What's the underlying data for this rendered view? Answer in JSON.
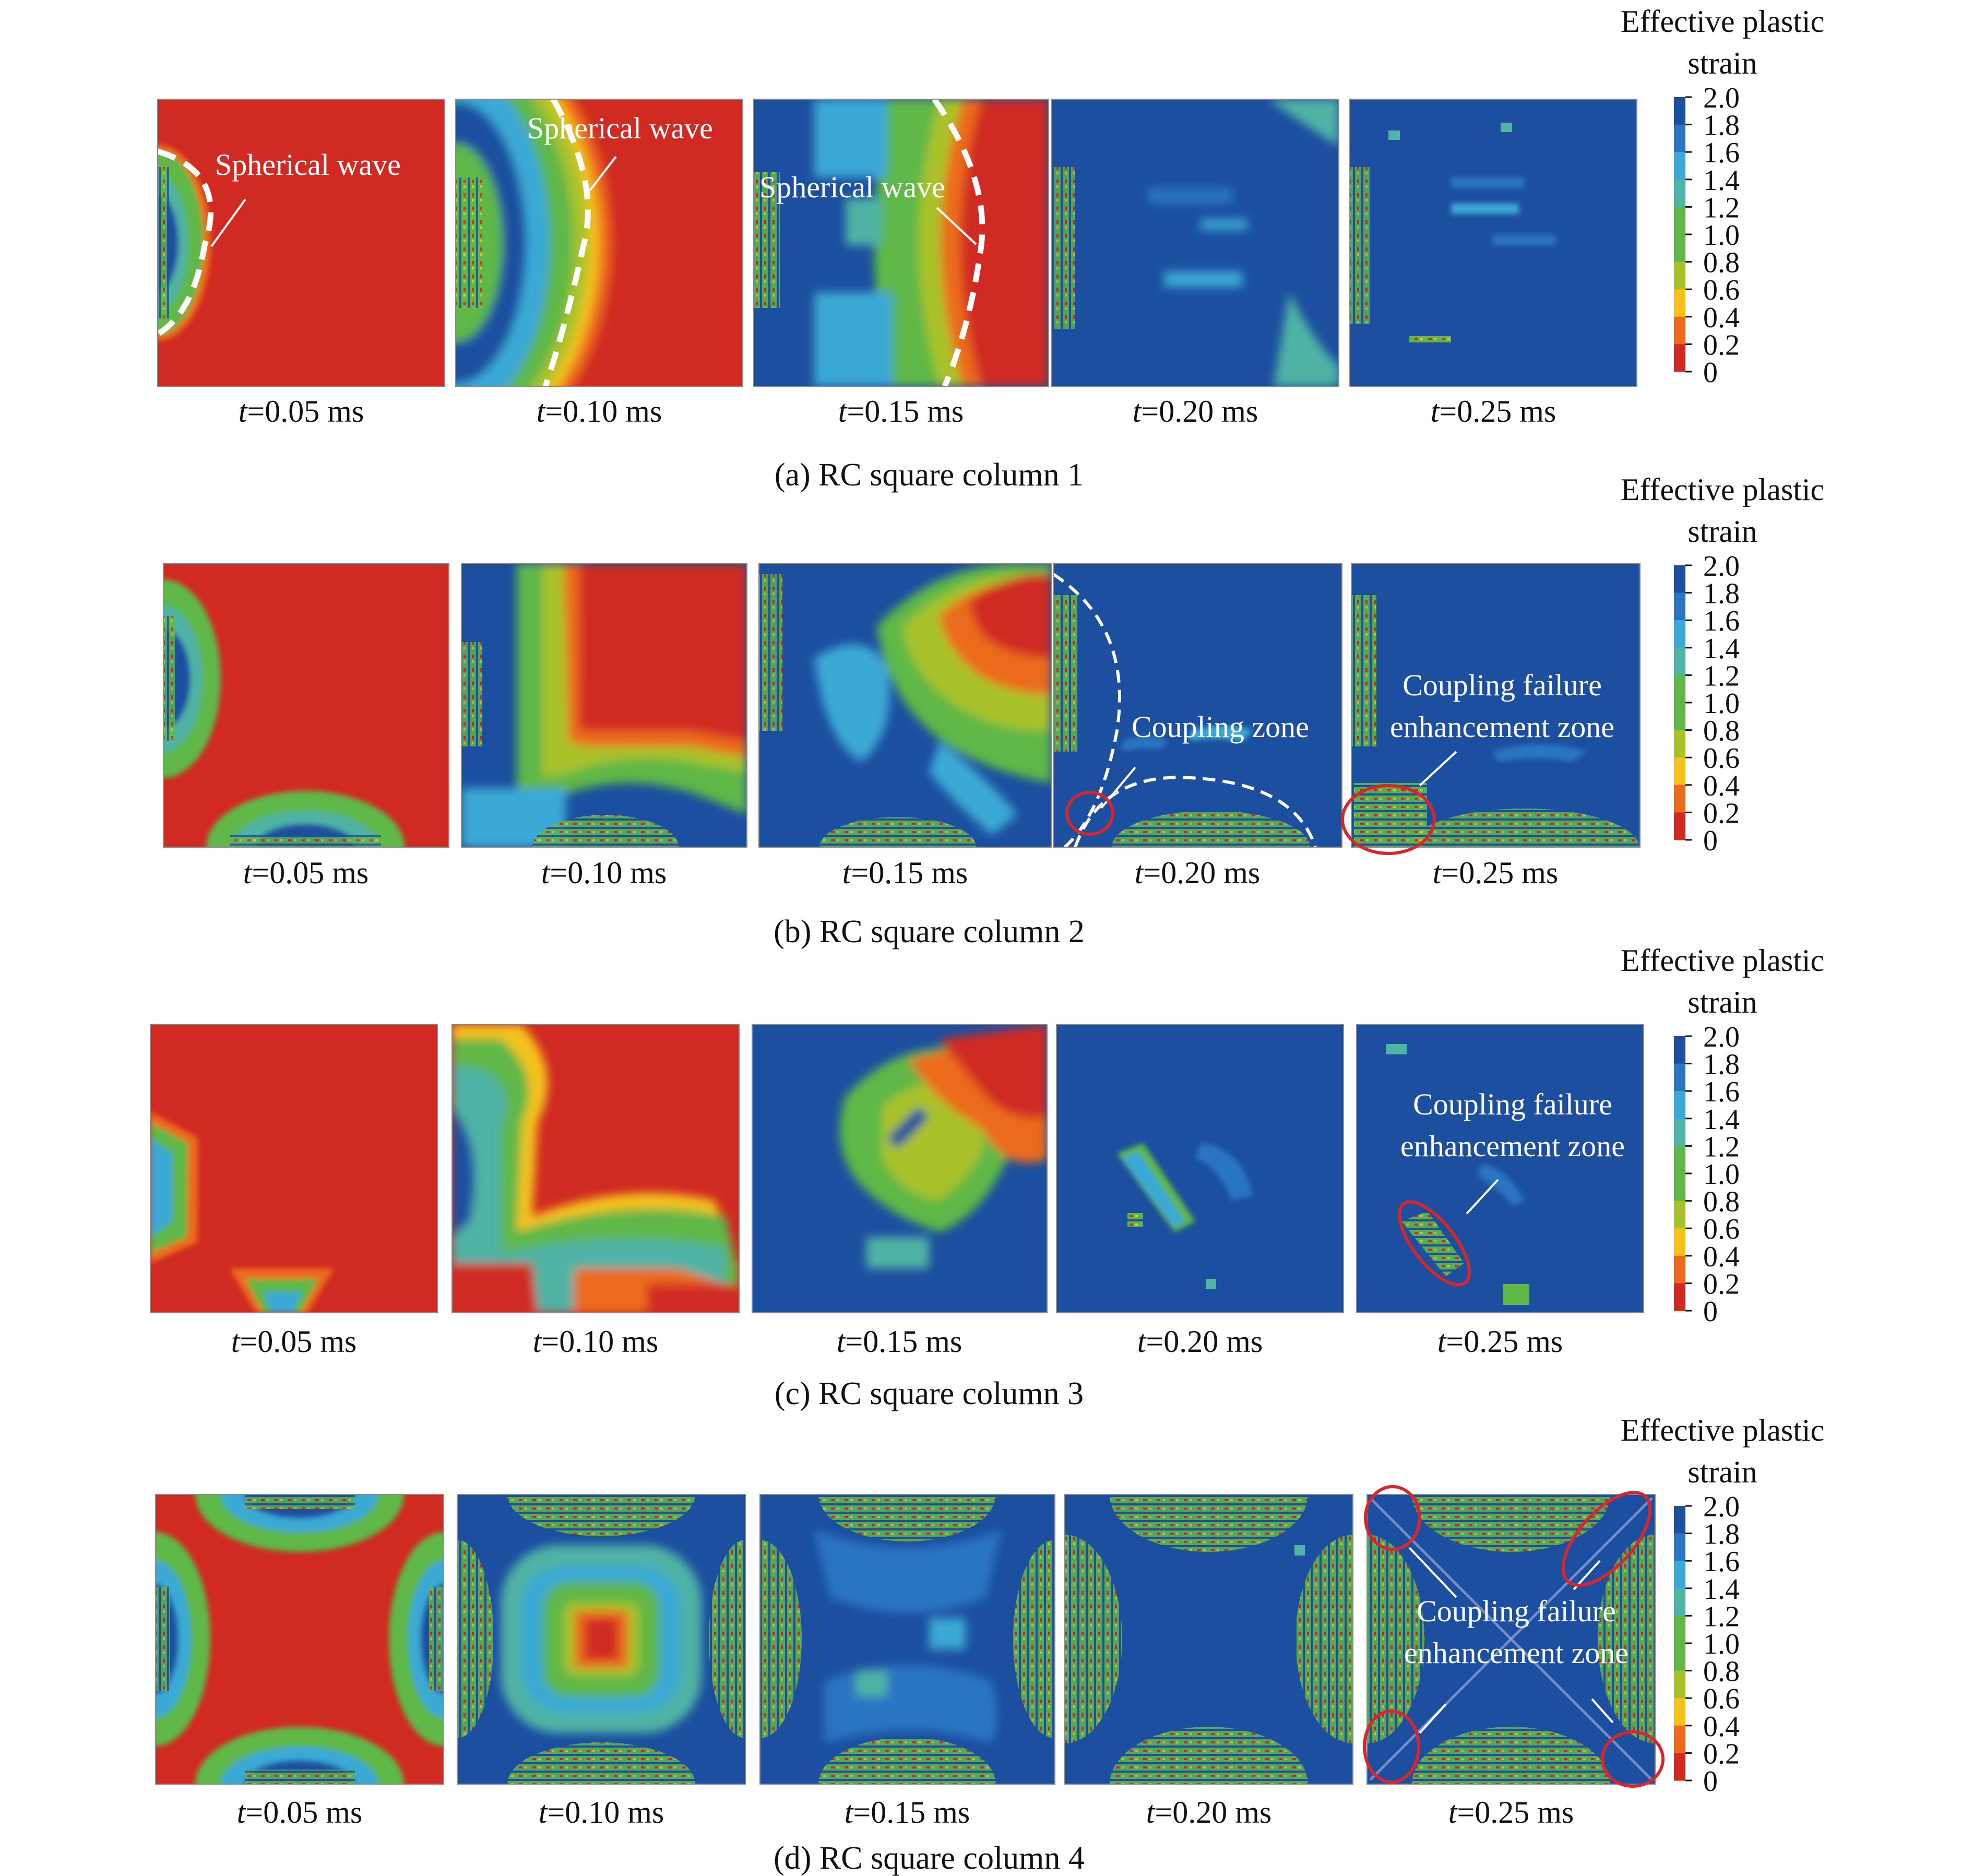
{
  "colors": {
    "red": "#d02a22",
    "orange": "#ec6a1e",
    "yellow": "#f4c21b",
    "yellowgreen": "#a9c22c",
    "green": "#5fb846",
    "teal": "#4fb3a5",
    "cyan": "#3aa9d6",
    "midblue": "#2a74c2",
    "blue": "#1c4fa0",
    "annotation_circle": "#d8262a"
  },
  "legend": {
    "title_line1": "Effective plastic",
    "title_line2": "strain",
    "ticks": [
      "2.0",
      "1.8",
      "1.6",
      "1.4",
      "1.2",
      "1.0",
      "0.8",
      "0.6",
      "0.4",
      "0.2",
      "0"
    ],
    "tick_values": [
      2.0,
      1.8,
      1.6,
      1.4,
      1.2,
      1.0,
      0.8,
      0.6,
      0.4,
      0.2,
      0
    ]
  },
  "time_labels": [
    {
      "var": "t",
      "value": "=0.05 ms"
    },
    {
      "var": "t",
      "value": "=0.10 ms"
    },
    {
      "var": "t",
      "value": "=0.15 ms"
    },
    {
      "var": "t",
      "value": "=0.20 ms"
    },
    {
      "var": "t",
      "value": "=0.25 ms"
    }
  ],
  "rows": [
    {
      "caption": "(a) RC square column 1",
      "annotations": [
        "Spherical wave",
        "Spherical wave",
        "Spherical wave"
      ]
    },
    {
      "caption": "(b) RC square column 2",
      "annotations": [
        "Coupling zone",
        "Coupling failure",
        "enhancement zone"
      ]
    },
    {
      "caption": "(c) RC square column 3",
      "annotations": [
        "Coupling failure",
        "enhancement zone"
      ]
    },
    {
      "caption": "(d) RC square column 4",
      "annotations": [
        "Coupling failure",
        "enhancement zone"
      ]
    }
  ]
}
